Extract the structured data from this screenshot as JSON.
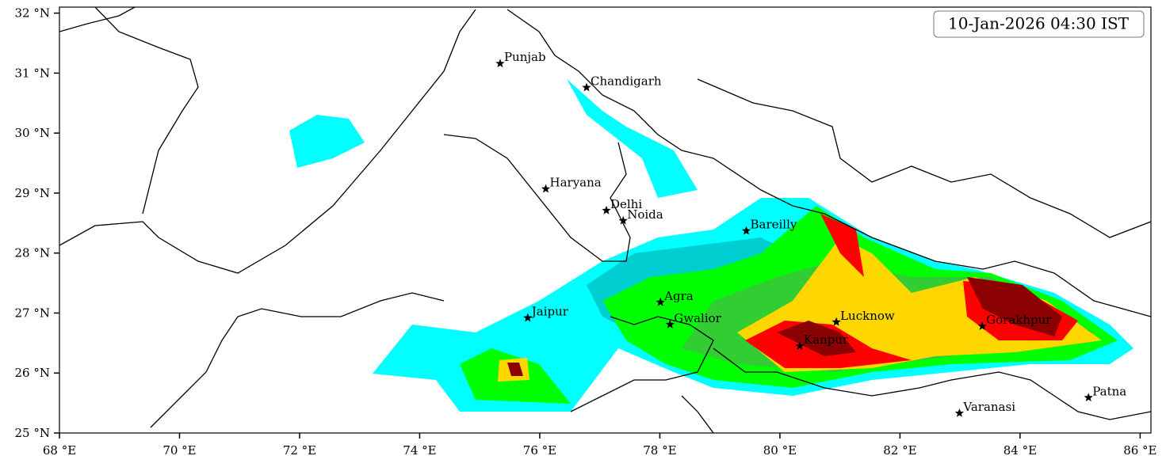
{
  "timestamp": "10-Jan-2026 04:30 IST",
  "map": {
    "xlim": [
      68,
      86.18
    ],
    "ylim": [
      25,
      32.1
    ],
    "xticks": [
      {
        "value": 68,
        "label": "68 °E"
      },
      {
        "value": 70,
        "label": "70 °E"
      },
      {
        "value": 72,
        "label": "72 °E"
      },
      {
        "value": 74,
        "label": "74 °E"
      },
      {
        "value": 76,
        "label": "76 °E"
      },
      {
        "value": 78,
        "label": "78 °E"
      },
      {
        "value": 80,
        "label": "80 °E"
      },
      {
        "value": 82,
        "label": "82 °E"
      },
      {
        "value": 84,
        "label": "84 °E"
      },
      {
        "value": 86,
        "label": "86 °E"
      }
    ],
    "yticks": [
      {
        "value": 25,
        "label": "25 °N"
      },
      {
        "value": 26,
        "label": "26 °N"
      },
      {
        "value": 27,
        "label": "27 °N"
      },
      {
        "value": 28,
        "label": "28 °N"
      },
      {
        "value": 29,
        "label": "29 °N"
      },
      {
        "value": 30,
        "label": "30 °N"
      },
      {
        "value": 31,
        "label": "31 °N"
      },
      {
        "value": 32,
        "label": "32 °N"
      }
    ],
    "cities": [
      {
        "name": "Punjab",
        "lon": 75.34,
        "lat": 31.16
      },
      {
        "name": "Chandigarh",
        "lon": 76.78,
        "lat": 30.76
      },
      {
        "name": "Haryana",
        "lon": 76.1,
        "lat": 29.07
      },
      {
        "name": "Delhi",
        "lon": 77.11,
        "lat": 28.71
      },
      {
        "name": "Noida",
        "lon": 77.39,
        "lat": 28.54
      },
      {
        "name": "Bareilly",
        "lon": 79.44,
        "lat": 28.37
      },
      {
        "name": "Agra",
        "lon": 78.01,
        "lat": 27.18
      },
      {
        "name": "Jaipur",
        "lon": 75.8,
        "lat": 26.92
      },
      {
        "name": "Gwalior",
        "lon": 78.17,
        "lat": 26.81
      },
      {
        "name": "Lucknow",
        "lon": 80.94,
        "lat": 26.85
      },
      {
        "name": "Kanpur",
        "lon": 80.33,
        "lat": 26.45
      },
      {
        "name": "Gorakhpur",
        "lon": 83.37,
        "lat": 26.78
      },
      {
        "name": "Varanasi",
        "lon": 82.99,
        "lat": 25.33
      },
      {
        "name": "Patna",
        "lon": 85.14,
        "lat": 25.59
      }
    ]
  }
}
